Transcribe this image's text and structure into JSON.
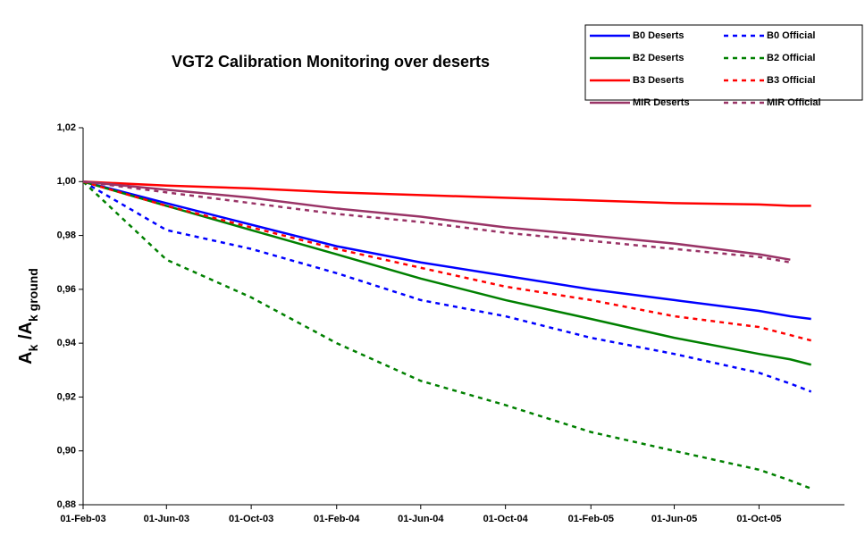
{
  "chart_data": {
    "type": "line",
    "title": "VGT2 Calibration Monitoring over deserts",
    "ylabel": [
      "A",
      "k",
      " /A",
      "k ground"
    ],
    "x": [
      "2003-02-01",
      "2003-06-01",
      "2003-10-01",
      "2004-02-01",
      "2004-06-01",
      "2004-10-01",
      "2005-02-01",
      "2005-06-01",
      "2005-10-01",
      "2005-11-15",
      "2005-12-15"
    ],
    "xlim": [
      "2003-02-01",
      "2006-02-01"
    ],
    "xticks": [
      {
        "value": "2003-02-01",
        "label": "01-Feb-03"
      },
      {
        "value": "2003-06-01",
        "label": "01-Jun-03"
      },
      {
        "value": "2003-10-01",
        "label": "01-Oct-03"
      },
      {
        "value": "2004-02-01",
        "label": "01-Feb-04"
      },
      {
        "value": "2004-06-01",
        "label": "01-Jun-04"
      },
      {
        "value": "2004-10-01",
        "label": "01-Oct-04"
      },
      {
        "value": "2005-02-01",
        "label": "01-Feb-05"
      },
      {
        "value": "2005-06-01",
        "label": "01-Jun-05"
      },
      {
        "value": "2005-10-01",
        "label": "01-Oct-05"
      }
    ],
    "ylim": [
      0.88,
      1.02
    ],
    "yticks": [
      {
        "value": 0.88,
        "label": "0,88"
      },
      {
        "value": 0.9,
        "label": "0,90"
      },
      {
        "value": 0.92,
        "label": "0,92"
      },
      {
        "value": 0.94,
        "label": "0,94"
      },
      {
        "value": 0.96,
        "label": "0,96"
      },
      {
        "value": 0.98,
        "label": "0,98"
      },
      {
        "value": 1.0,
        "label": "1,00"
      },
      {
        "value": 1.02,
        "label": "1,02"
      }
    ],
    "grid": false,
    "legend": "top-right",
    "series": [
      {
        "name": "B0 Deserts",
        "color": "#0000ff",
        "style": "solid",
        "values": [
          1.0,
          0.992,
          0.984,
          0.976,
          0.97,
          0.965,
          0.96,
          0.956,
          0.952,
          0.95,
          0.949
        ]
      },
      {
        "name": "B0 Official",
        "color": "#0000ff",
        "style": "dashed",
        "values": [
          1.0,
          0.982,
          0.975,
          0.966,
          0.956,
          0.95,
          0.942,
          0.936,
          0.929,
          0.925,
          0.922
        ]
      },
      {
        "name": "B2 Deserts",
        "color": "#008000",
        "style": "solid",
        "values": [
          1.0,
          0.991,
          0.982,
          0.973,
          0.964,
          0.956,
          0.949,
          0.942,
          0.936,
          0.934,
          0.932
        ]
      },
      {
        "name": "B2 Official",
        "color": "#008000",
        "style": "dashed",
        "values": [
          1.0,
          0.971,
          0.957,
          0.94,
          0.926,
          0.917,
          0.907,
          0.9,
          0.893,
          0.889,
          0.886
        ]
      },
      {
        "name": "B3 Deserts",
        "color": "#ff0000",
        "style": "solid",
        "values": [
          1.0,
          0.9985,
          0.9975,
          0.996,
          0.995,
          0.994,
          0.993,
          0.992,
          0.9915,
          0.991,
          0.991
        ]
      },
      {
        "name": "B3 Official",
        "color": "#ff0000",
        "style": "dashed",
        "values": [
          1.0,
          0.991,
          0.983,
          0.975,
          0.968,
          0.961,
          0.956,
          0.95,
          0.946,
          0.943,
          0.941
        ]
      },
      {
        "name": "MIR Deserts",
        "color": "#993366",
        "style": "solid",
        "values": [
          1.0,
          0.997,
          0.994,
          0.99,
          0.987,
          0.983,
          0.98,
          0.977,
          0.973,
          0.971,
          null
        ]
      },
      {
        "name": "MIR Official",
        "color": "#993366",
        "style": "dashed",
        "values": [
          1.0,
          0.996,
          0.992,
          0.988,
          0.985,
          0.981,
          0.978,
          0.975,
          0.972,
          0.97,
          null
        ]
      }
    ]
  }
}
